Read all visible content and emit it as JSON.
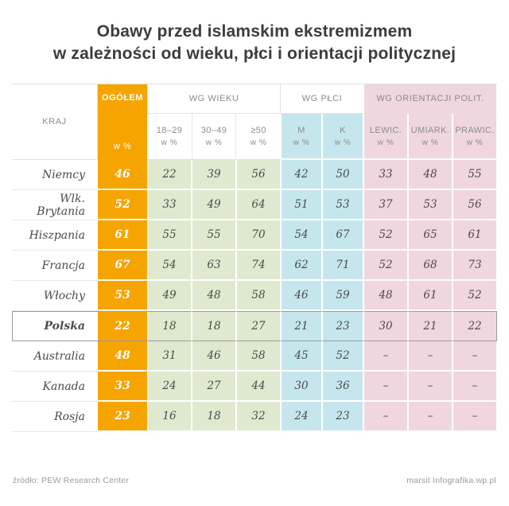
{
  "title": {
    "line1": "Obawy przed islamskim ekstremizmem",
    "line2": "w zależności od wieku, płci i orientacji politycznej"
  },
  "table": {
    "kraj_header": "KRAJ",
    "ogolem_header": "OGÓŁEM",
    "percent_label": "w %",
    "groups": [
      {
        "label": "WG WIEKU",
        "cols": [
          "18–29",
          "30–49",
          "≥50"
        ]
      },
      {
        "label": "WG PŁCI",
        "cols": [
          "M",
          "K"
        ]
      },
      {
        "label": "WG ORIENTACJI POLIT.",
        "cols": [
          "LEWIC.",
          "UMIARK.",
          "PRAWIC."
        ]
      }
    ],
    "rows": [
      {
        "country": "Niemcy",
        "ogolem": "46",
        "age": [
          "22",
          "39",
          "56"
        ],
        "gender": [
          "42",
          "50"
        ],
        "orient": [
          "33",
          "48",
          "55"
        ],
        "highlight": false
      },
      {
        "country": "Wlk. Brytania",
        "ogolem": "52",
        "age": [
          "33",
          "49",
          "64"
        ],
        "gender": [
          "51",
          "53"
        ],
        "orient": [
          "37",
          "53",
          "56"
        ],
        "highlight": false
      },
      {
        "country": "Hiszpania",
        "ogolem": "61",
        "age": [
          "55",
          "55",
          "70"
        ],
        "gender": [
          "54",
          "67"
        ],
        "orient": [
          "52",
          "65",
          "61"
        ],
        "highlight": false
      },
      {
        "country": "Francja",
        "ogolem": "67",
        "age": [
          "54",
          "63",
          "74"
        ],
        "gender": [
          "62",
          "71"
        ],
        "orient": [
          "52",
          "68",
          "73"
        ],
        "highlight": false
      },
      {
        "country": "Włochy",
        "ogolem": "53",
        "age": [
          "49",
          "48",
          "58"
        ],
        "gender": [
          "46",
          "59"
        ],
        "orient": [
          "48",
          "61",
          "52"
        ],
        "highlight": false
      },
      {
        "country": "Polska",
        "ogolem": "22",
        "age": [
          "18",
          "18",
          "27"
        ],
        "gender": [
          "21",
          "23"
        ],
        "orient": [
          "30",
          "21",
          "22"
        ],
        "highlight": true
      },
      {
        "country": "Australia",
        "ogolem": "48",
        "age": [
          "31",
          "46",
          "58"
        ],
        "gender": [
          "45",
          "52"
        ],
        "orient": [
          "–",
          "–",
          "–"
        ],
        "highlight": false
      },
      {
        "country": "Kanada",
        "ogolem": "33",
        "age": [
          "24",
          "27",
          "44"
        ],
        "gender": [
          "30",
          "36"
        ],
        "orient": [
          "–",
          "–",
          "–"
        ],
        "highlight": false
      },
      {
        "country": "Rosja",
        "ogolem": "23",
        "age": [
          "16",
          "18",
          "32"
        ],
        "gender": [
          "24",
          "23"
        ],
        "orient": [
          "–",
          "–",
          "–"
        ],
        "highlight": false
      }
    ]
  },
  "footer": {
    "source": "źródło: PEW Research Center",
    "credit": "marsit Infografika.wp.pl"
  },
  "colors": {
    "orange": "#f6a400",
    "green": "#dfe9cf",
    "blue": "#c6e6ee",
    "pink": "#f0d6df",
    "highlight_border": "#9b9b9b"
  },
  "chart_data": {
    "type": "table",
    "title": "Obawy przed islamskim ekstremizmem w zależności od wieku, płci i orientacji politycznej",
    "columns": [
      "KRAJ",
      "OGÓŁEM w %",
      "18–29 w %",
      "30–49 w %",
      "≥50 w %",
      "M w %",
      "K w %",
      "LEWIC. w %",
      "UMIARK. w %",
      "PRAWIC. w %"
    ],
    "rows": [
      [
        "Niemcy",
        46,
        22,
        39,
        56,
        42,
        50,
        33,
        48,
        55
      ],
      [
        "Wlk. Brytania",
        52,
        33,
        49,
        64,
        51,
        53,
        37,
        53,
        56
      ],
      [
        "Hiszpania",
        61,
        55,
        55,
        70,
        54,
        67,
        52,
        65,
        61
      ],
      [
        "Francja",
        67,
        54,
        63,
        74,
        62,
        71,
        52,
        68,
        73
      ],
      [
        "Włochy",
        53,
        49,
        48,
        58,
        46,
        59,
        48,
        61,
        52
      ],
      [
        "Polska",
        22,
        18,
        18,
        27,
        21,
        23,
        30,
        21,
        22
      ],
      [
        "Australia",
        48,
        31,
        46,
        58,
        45,
        52,
        null,
        null,
        null
      ],
      [
        "Kanada",
        33,
        24,
        27,
        44,
        30,
        36,
        null,
        null,
        null
      ],
      [
        "Rosja",
        23,
        16,
        18,
        32,
        24,
        23,
        null,
        null,
        null
      ]
    ],
    "highlighted_row": "Polska",
    "source": "PEW Research Center"
  }
}
